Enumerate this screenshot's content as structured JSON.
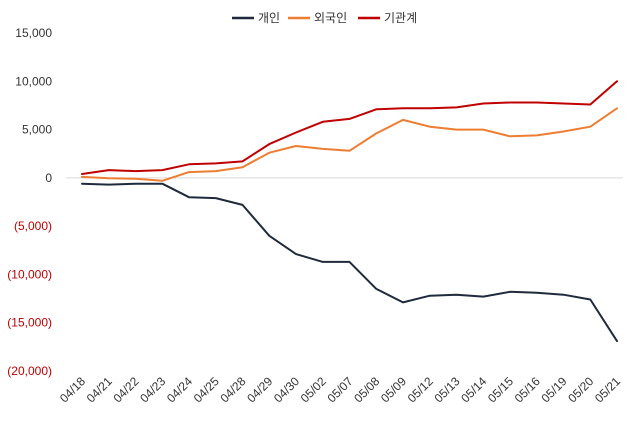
{
  "chart_data": {
    "type": "line",
    "title": "",
    "xlabel": "",
    "ylabel": "",
    "categories": [
      "04/18",
      "04/21",
      "04/22",
      "04/23",
      "04/24",
      "04/25",
      "04/28",
      "04/29",
      "04/30",
      "05/02",
      "05/07",
      "05/08",
      "05/09",
      "05/12",
      "05/13",
      "05/14",
      "05/15",
      "05/16",
      "05/19",
      "05/20",
      "05/21"
    ],
    "ylim": [
      -20000,
      15000
    ],
    "yticks": [
      15000,
      10000,
      5000,
      0,
      -5000,
      -10000,
      -15000,
      -20000
    ],
    "ytick_labels": [
      "15,000",
      "10,000",
      "5,000",
      "0",
      "(5,000)",
      "(10,000)",
      "(15,000)",
      "(20,000)"
    ],
    "negative_tick_color": "#c00000",
    "positive_tick_color": "#333333",
    "grid": false,
    "legend_position": "top-center",
    "series": [
      {
        "name": "개인",
        "color": "#1f2a3c",
        "values": [
          -600,
          -700,
          -600,
          -600,
          -2000,
          -2100,
          -2800,
          -6000,
          -7900,
          -8700,
          -8700,
          -11500,
          -12900,
          -12200,
          -12100,
          -12300,
          -11800,
          -11900,
          -12100,
          -12600,
          -16900
        ]
      },
      {
        "name": "외국인",
        "color": "#ed7d31",
        "values": [
          100,
          -50,
          -100,
          -300,
          600,
          700,
          1100,
          2600,
          3300,
          3000,
          2800,
          4600,
          6000,
          5300,
          5000,
          5000,
          4300,
          4400,
          4800,
          5300,
          7200
        ]
      },
      {
        "name": "기관계",
        "color": "#c00000",
        "values": [
          400,
          800,
          700,
          800,
          1400,
          1500,
          1700,
          3500,
          4700,
          5800,
          6100,
          7100,
          7200,
          7200,
          7300,
          7700,
          7800,
          7800,
          7700,
          7600,
          10000
        ]
      }
    ]
  }
}
